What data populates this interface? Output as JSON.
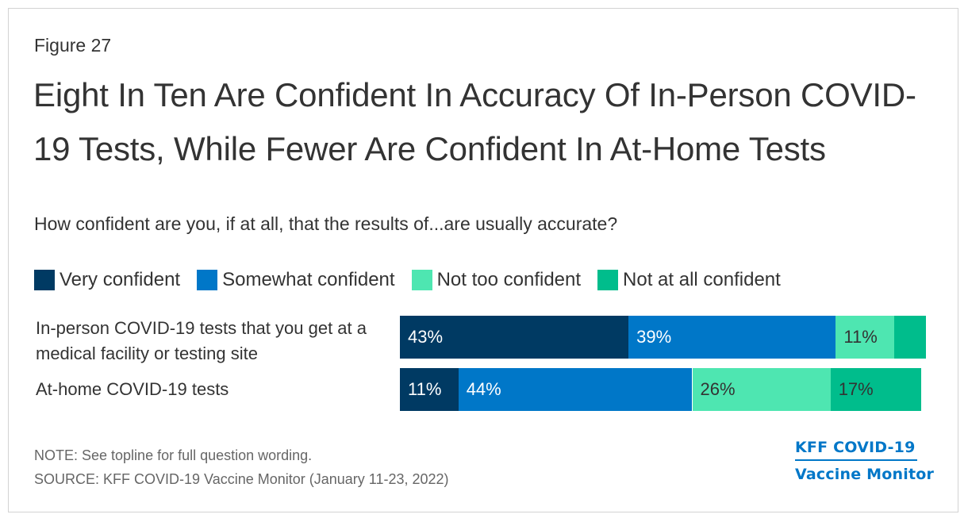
{
  "figure_label": "Figure 27",
  "title": "Eight In Ten Are Confident In Accuracy Of In-Person COVID-19 Tests, While Fewer Are Confident In At-Home Tests",
  "subtitle": "How confident are you, if at all, that the results of...are usually accurate?",
  "note": "NOTE: See topline for full question wording.",
  "source": "SOURCE: KFF COVID-19 Vaccine Monitor (January 11-23, 2022)",
  "logo": {
    "line1": "KFF COVID-19",
    "line2": "Vaccine Monitor"
  },
  "colors": {
    "very": "#003a63",
    "somewhat": "#0077c8",
    "not_too": "#4ee6b1",
    "not_at_all": "#00bd8c",
    "logo": "#0077c8"
  },
  "chart_data": {
    "type": "bar",
    "orientation": "horizontal",
    "stacked": true,
    "categories": [
      "In-person COVID-19 tests that you get at a medical facility or testing site",
      "At-home COVID-19 tests"
    ],
    "series": [
      {
        "name": "Very confident",
        "color": "#003a63",
        "values": [
          43,
          11
        ],
        "labels": [
          "43%",
          "11%"
        ],
        "label_color": "#ffffff"
      },
      {
        "name": "Somewhat confident",
        "color": "#0077c8",
        "values": [
          39,
          44
        ],
        "labels": [
          "39%",
          "44%"
        ],
        "label_color": "#ffffff"
      },
      {
        "name": "Not too confident",
        "color": "#4ee6b1",
        "values": [
          11,
          26
        ],
        "labels": [
          "11%",
          "26%"
        ],
        "label_color": "#333333"
      },
      {
        "name": "Not at all confident",
        "color": "#00bd8c",
        "values": [
          6,
          17
        ],
        "labels": [
          "",
          "17%"
        ],
        "label_color": "#333333"
      }
    ],
    "xlim": [
      0,
      100
    ],
    "legend_position": "top",
    "grid": false
  }
}
